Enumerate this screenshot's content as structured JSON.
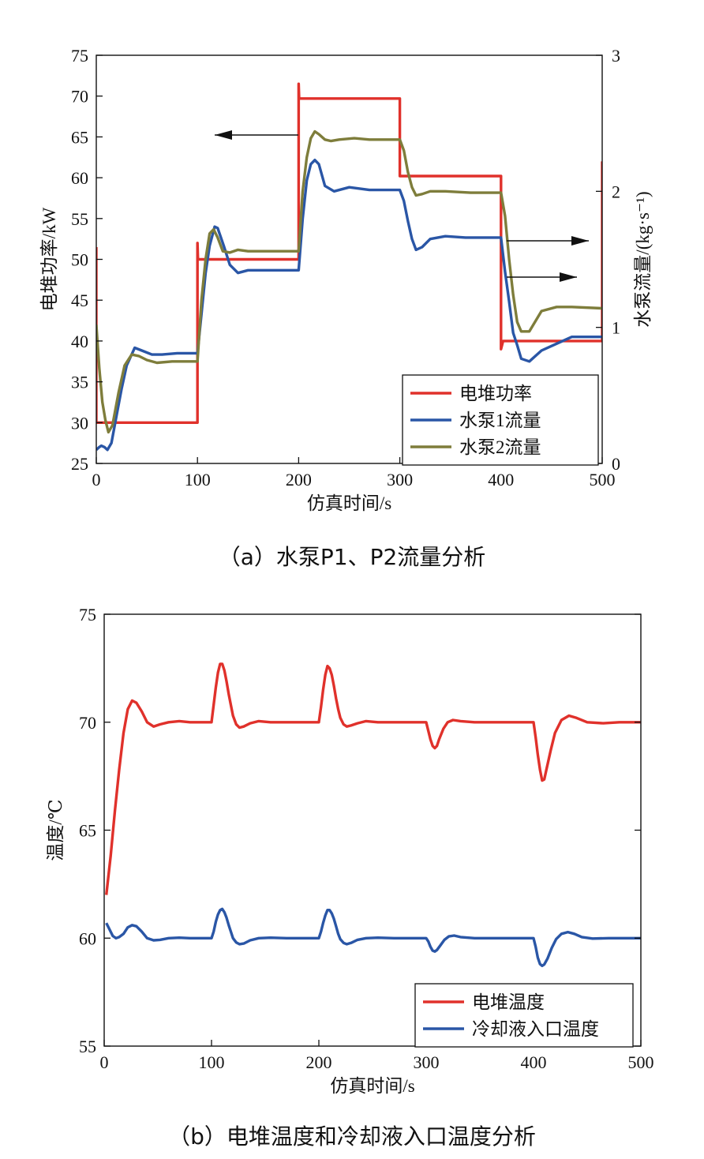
{
  "captions": {
    "a": "（a）水泵P1、P2流量分析",
    "b": "（b）电堆温度和冷却液入口温度分析"
  },
  "chart_data": [
    {
      "type": "line",
      "xlabel": "仿真时间/s",
      "ylabel": "电堆功率/kW",
      "ylabel_right": "水泵流量/(kg·s⁻¹)",
      "xlim": [
        0,
        500
      ],
      "ylim": [
        25,
        75
      ],
      "ylim_right": [
        0,
        3
      ],
      "xticks": [
        "0",
        "100",
        "200",
        "300",
        "400",
        "500"
      ],
      "yticks": [
        "25",
        "30",
        "35",
        "40",
        "45",
        "50",
        "55",
        "60",
        "65",
        "70",
        "75"
      ],
      "yticks_right": [
        "0",
        "1",
        "2",
        "3"
      ],
      "legend_position": "bottom-right",
      "annotations": "arrows: power curve → left axis; pump flow curves → right axis",
      "series": [
        {
          "name": "电堆功率",
          "color": "#e0312b",
          "axis": "left",
          "x": [
            0,
            0,
            2,
            100,
            100,
            100.5,
            102,
            200,
            200,
            200.5,
            202,
            300,
            300,
            302,
            400,
            400,
            402,
            500,
            500
          ],
          "y": [
            51.5,
            30,
            30,
            30,
            52,
            50,
            50,
            50,
            71.5,
            69.7,
            69.7,
            69.7,
            60.2,
            60.2,
            60.2,
            39,
            40,
            40,
            62
          ]
        },
        {
          "name": "水泵1流量",
          "color": "#2a56a6",
          "axis": "right",
          "x": [
            0,
            3,
            5,
            8,
            11,
            15,
            20,
            25,
            30,
            38,
            45,
            55,
            65,
            80,
            100,
            104,
            108,
            112,
            117,
            120,
            126,
            132,
            140,
            150,
            165,
            180,
            200,
            204,
            208,
            212,
            216,
            220,
            226,
            235,
            250,
            270,
            300,
            304,
            308,
            312,
            316,
            322,
            330,
            345,
            365,
            385,
            400,
            404,
            408,
            412,
            416,
            420,
            428,
            440,
            455,
            470,
            500
          ],
          "y": [
            0.1,
            0.12,
            0.13,
            0.12,
            0.1,
            0.15,
            0.35,
            0.55,
            0.72,
            0.85,
            0.83,
            0.8,
            0.8,
            0.81,
            0.81,
            1.1,
            1.4,
            1.6,
            1.74,
            1.73,
            1.6,
            1.46,
            1.4,
            1.42,
            1.42,
            1.42,
            1.42,
            1.8,
            2.08,
            2.2,
            2.23,
            2.2,
            2.04,
            2.0,
            2.03,
            2.01,
            2.01,
            1.93,
            1.78,
            1.65,
            1.57,
            1.59,
            1.65,
            1.67,
            1.66,
            1.66,
            1.66,
            1.41,
            1.19,
            0.96,
            0.87,
            0.77,
            0.75,
            0.83,
            0.88,
            0.93,
            0.93
          ]
        },
        {
          "name": "水泵2流量",
          "color": "#7e7d3b",
          "axis": "right",
          "x": [
            0,
            3,
            6,
            9,
            12,
            16,
            22,
            28,
            35,
            42,
            50,
            60,
            75,
            100,
            104,
            108,
            112,
            116,
            120,
            125,
            132,
            140,
            150,
            165,
            180,
            200,
            204,
            208,
            212,
            216,
            220,
            226,
            232,
            240,
            255,
            270,
            300,
            304,
            308,
            312,
            316,
            322,
            330,
            345,
            370,
            400,
            404,
            408,
            412,
            416,
            420,
            428,
            440,
            455,
            470,
            500
          ],
          "y": [
            1.02,
            0.7,
            0.45,
            0.32,
            0.23,
            0.28,
            0.52,
            0.72,
            0.8,
            0.79,
            0.76,
            0.74,
            0.75,
            0.75,
            1.2,
            1.5,
            1.69,
            1.72,
            1.66,
            1.56,
            1.55,
            1.57,
            1.56,
            1.56,
            1.56,
            1.56,
            2.0,
            2.25,
            2.39,
            2.44,
            2.42,
            2.38,
            2.37,
            2.38,
            2.39,
            2.38,
            2.38,
            2.3,
            2.14,
            2.03,
            1.97,
            1.98,
            2.0,
            2.0,
            1.99,
            1.99,
            1.82,
            1.5,
            1.24,
            1.04,
            0.97,
            0.97,
            1.12,
            1.15,
            1.15,
            1.14
          ]
        }
      ]
    },
    {
      "type": "line",
      "xlabel": "仿真时间/s",
      "ylabel": "温度/℃",
      "xlim": [
        0,
        500
      ],
      "ylim": [
        55,
        75
      ],
      "xticks": [
        "0",
        "100",
        "200",
        "300",
        "400",
        "500"
      ],
      "yticks": [
        "55",
        "60",
        "65",
        "70",
        "75"
      ],
      "legend_position": "bottom-right",
      "series": [
        {
          "name": "电堆温度",
          "color": "#e0312b",
          "x": [
            2,
            6,
            10,
            14,
            18,
            22,
            26,
            30,
            35,
            40,
            46,
            52,
            60,
            70,
            80,
            90,
            100,
            102,
            104,
            106,
            108,
            110,
            112,
            114,
            116,
            118,
            120,
            123,
            126,
            130,
            136,
            144,
            155,
            170,
            185,
            200,
            202,
            204,
            206,
            208,
            210,
            212,
            214,
            216,
            218,
            220,
            223,
            226,
            230,
            236,
            244,
            255,
            270,
            285,
            300,
            302,
            304,
            306,
            308,
            310,
            312,
            316,
            320,
            325,
            332,
            345,
            365,
            385,
            400,
            402,
            404,
            406,
            408,
            410,
            412,
            416,
            420,
            426,
            433,
            440,
            450,
            465,
            480,
            500
          ],
          "y": [
            62,
            63.8,
            65.9,
            67.8,
            69.5,
            70.6,
            71.0,
            70.9,
            70.5,
            70.0,
            69.8,
            69.9,
            70.0,
            70.05,
            70.0,
            70.0,
            70.0,
            70.8,
            71.6,
            72.3,
            72.7,
            72.7,
            72.4,
            71.9,
            71.3,
            70.8,
            70.3,
            69.9,
            69.75,
            69.8,
            69.95,
            70.05,
            70.0,
            70.0,
            70.0,
            70.0,
            70.7,
            71.5,
            72.2,
            72.6,
            72.5,
            72.2,
            71.7,
            71.1,
            70.6,
            70.2,
            69.9,
            69.8,
            69.85,
            69.95,
            70.05,
            70.0,
            70.0,
            70.0,
            70.0,
            69.6,
            69.2,
            68.9,
            68.8,
            68.9,
            69.2,
            69.7,
            70.0,
            70.1,
            70.05,
            70.0,
            70.0,
            70.0,
            70.0,
            69.3,
            68.5,
            67.8,
            67.3,
            67.35,
            67.8,
            68.7,
            69.5,
            70.1,
            70.3,
            70.2,
            70.0,
            69.95,
            70.0,
            70.0
          ]
        },
        {
          "name": "冷却液入口温度",
          "color": "#2a56a6",
          "x": [
            2,
            5,
            8,
            11,
            14,
            18,
            22,
            26,
            30,
            35,
            40,
            46,
            52,
            60,
            70,
            80,
            90,
            100,
            102,
            104,
            106,
            108,
            110,
            112,
            114,
            116,
            118,
            120,
            123,
            126,
            130,
            136,
            144,
            155,
            170,
            185,
            200,
            202,
            204,
            206,
            208,
            210,
            212,
            214,
            216,
            218,
            220,
            223,
            226,
            230,
            236,
            244,
            255,
            270,
            285,
            300,
            302,
            304,
            306,
            308,
            310,
            313,
            317,
            321,
            326,
            332,
            345,
            365,
            385,
            400,
            402,
            404,
            406,
            408,
            410,
            413,
            417,
            421,
            426,
            432,
            438,
            445,
            455,
            470,
            500
          ],
          "y": [
            60.7,
            60.4,
            60.1,
            60.0,
            60.05,
            60.2,
            60.5,
            60.6,
            60.55,
            60.3,
            60.0,
            59.9,
            59.92,
            60.0,
            60.02,
            60.0,
            60.0,
            60.0,
            60.3,
            60.75,
            61.1,
            61.3,
            61.35,
            61.2,
            60.95,
            60.6,
            60.3,
            60.0,
            59.8,
            59.72,
            59.75,
            59.9,
            60.0,
            60.02,
            60.0,
            60.0,
            60.0,
            60.3,
            60.7,
            61.05,
            61.3,
            61.3,
            61.15,
            60.9,
            60.55,
            60.2,
            59.95,
            59.78,
            59.72,
            59.78,
            59.92,
            60.0,
            60.02,
            60.0,
            60.0,
            60.0,
            59.85,
            59.6,
            59.42,
            59.38,
            59.45,
            59.65,
            59.92,
            60.08,
            60.12,
            60.05,
            60.0,
            60.0,
            60.0,
            60.0,
            59.6,
            59.1,
            58.8,
            58.72,
            58.78,
            59.05,
            59.55,
            59.95,
            60.2,
            60.28,
            60.2,
            60.05,
            59.98,
            60.0,
            60.0
          ]
        }
      ]
    }
  ]
}
